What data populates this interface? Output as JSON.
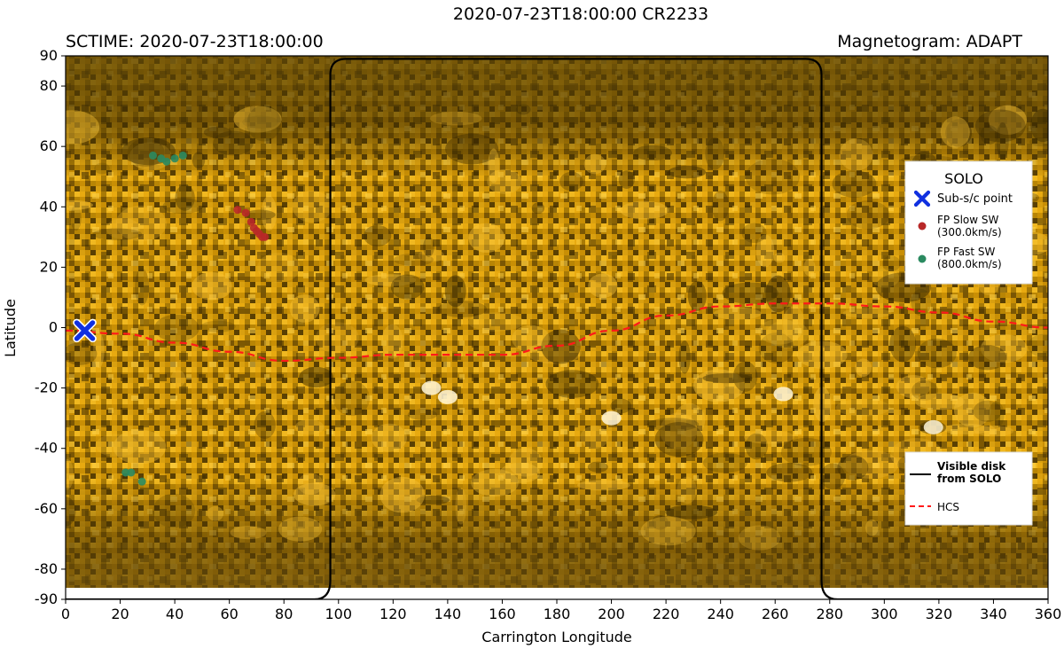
{
  "header": {
    "main_title": "2020-07-23T18:00:00 CR2233",
    "left_title": "SCTIME: 2020-07-23T18:00:00",
    "right_title": "Magnetogram: ADAPT"
  },
  "chart_data": {
    "type": "scatter",
    "background": "EUV synoptic map (Carrington projection)",
    "xlabel": "Carrington Longitude",
    "ylabel": "Latitude",
    "xlim": [
      0,
      360
    ],
    "ylim": [
      -90,
      90
    ],
    "xticks": [
      0,
      20,
      40,
      60,
      80,
      100,
      120,
      140,
      160,
      180,
      200,
      220,
      240,
      260,
      280,
      300,
      320,
      340,
      360
    ],
    "yticks": [
      -90,
      -80,
      -60,
      -40,
      -20,
      0,
      20,
      40,
      60,
      80,
      90
    ],
    "grid": false,
    "colors": {
      "map_bright": "#e8a900",
      "map_dark": "#3a2a02",
      "subsc": "#1030e0",
      "slow": "#b82828",
      "fast": "#2a8a60",
      "hcs": "#ff1a1a",
      "disk": "#000000"
    },
    "series": [
      {
        "name": "Sub-s/c point",
        "marker": "X",
        "points": [
          [
            7,
            -1
          ]
        ]
      },
      {
        "name": "FP Slow SW (300.0km/s)",
        "marker": "dot",
        "points": [
          [
            63,
            39
          ],
          [
            66,
            38
          ],
          [
            68,
            35
          ],
          [
            69,
            33
          ],
          [
            70,
            32
          ],
          [
            71,
            31
          ],
          [
            72,
            30
          ],
          [
            73,
            30
          ]
        ]
      },
      {
        "name": "FP Fast SW (800.0km/s)",
        "marker": "dot",
        "points": [
          [
            32,
            57
          ],
          [
            35,
            56
          ],
          [
            37,
            55
          ],
          [
            40,
            56
          ],
          [
            43,
            57
          ],
          [
            22,
            -48
          ],
          [
            24,
            -48
          ],
          [
            28,
            -51
          ]
        ]
      }
    ],
    "hcs": {
      "name": "HCS",
      "lon": [
        0,
        20,
        40,
        60,
        80,
        100,
        120,
        140,
        160,
        180,
        200,
        220,
        240,
        260,
        280,
        300,
        320,
        340,
        360
      ],
      "lat": [
        -1,
        -2,
        -5,
        -8,
        -11,
        -10,
        -9,
        -9,
        -9,
        -6,
        -1,
        4,
        7,
        8,
        8,
        7,
        5,
        2,
        0
      ]
    },
    "visible_disk": {
      "name": "Visible disk from SOLO",
      "lon_min": 97,
      "lon_max": 277
    },
    "legends": [
      {
        "title": "SOLO",
        "position": "right",
        "entries": [
          "Sub-s/c point",
          "FP Slow SW\n(300.0km/s)",
          "FP Fast SW\n(800.0km/s)"
        ]
      },
      {
        "title": "",
        "position": "lower right",
        "entries": [
          "Visible disk\nfrom SOLO",
          "HCS"
        ]
      }
    ]
  }
}
